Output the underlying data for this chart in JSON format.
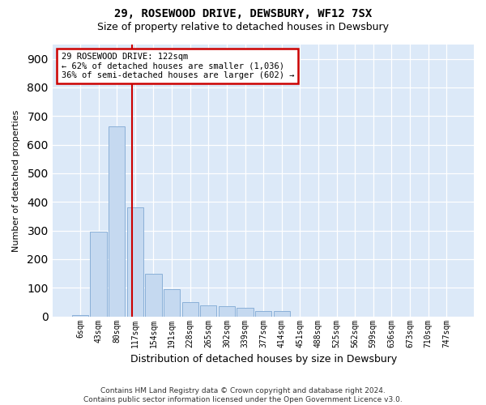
{
  "title": "29, ROSEWOOD DRIVE, DEWSBURY, WF12 7SX",
  "subtitle": "Size of property relative to detached houses in Dewsbury",
  "xlabel": "Distribution of detached houses by size in Dewsbury",
  "ylabel": "Number of detached properties",
  "footer_line1": "Contains HM Land Registry data © Crown copyright and database right 2024.",
  "footer_line2": "Contains public sector information licensed under the Open Government Licence v3.0.",
  "bar_labels": [
    "6sqm",
    "43sqm",
    "80sqm",
    "117sqm",
    "154sqm",
    "191sqm",
    "228sqm",
    "265sqm",
    "302sqm",
    "339sqm",
    "377sqm",
    "414sqm",
    "451sqm",
    "488sqm",
    "525sqm",
    "562sqm",
    "599sqm",
    "636sqm",
    "673sqm",
    "710sqm",
    "747sqm"
  ],
  "bar_values": [
    5,
    295,
    665,
    380,
    150,
    95,
    50,
    40,
    35,
    30,
    20,
    20,
    0,
    0,
    0,
    0,
    0,
    0,
    0,
    0,
    0
  ],
  "bar_color": "#c5d9f0",
  "bar_edge_color": "#8ab0d8",
  "annotation_text": "29 ROSEWOOD DRIVE: 122sqm\n← 62% of detached houses are smaller (1,036)\n36% of semi-detached houses are larger (602) →",
  "annotation_box_color": "#ffffff",
  "annotation_box_edgecolor": "#cc0000",
  "vline_x": 2.85,
  "vline_color": "#cc0000",
  "ylim": [
    0,
    950
  ],
  "yticks": [
    0,
    100,
    200,
    300,
    400,
    500,
    600,
    700,
    800,
    900
  ],
  "plot_bg_color": "#dce9f8",
  "fig_bg_color": "#ffffff",
  "figsize": [
    6.0,
    5.0
  ],
  "dpi": 100
}
